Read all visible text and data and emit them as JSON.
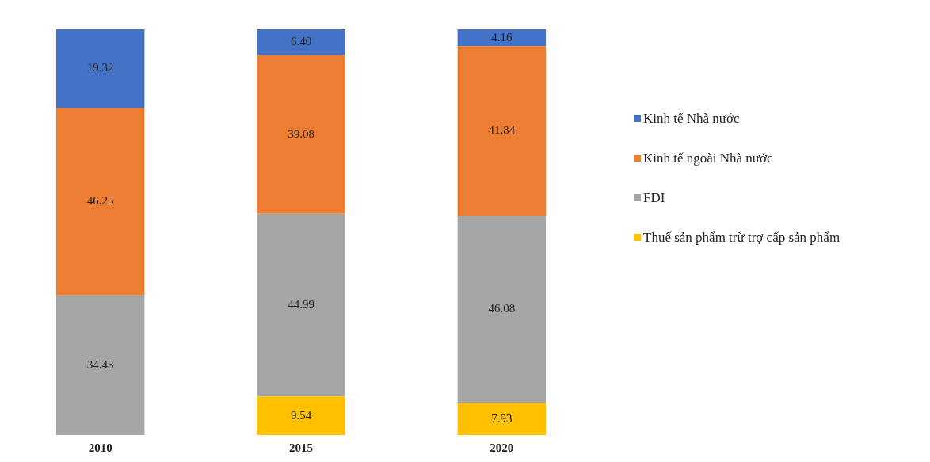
{
  "chart_data": {
    "type": "bar",
    "stacked": true,
    "categories": [
      "2010",
      "2015",
      "2020"
    ],
    "tick_labels": "x",
    "grid": false,
    "legend": "right",
    "series": [
      {
        "name": "Thuế sản phẩm trừ trợ cấp sản phẩm",
        "color": "#ffc000",
        "values": [
          null,
          9.54,
          7.93
        ],
        "value_labels": [
          null,
          "9.54",
          "7.93"
        ]
      },
      {
        "name": "FDI",
        "color": "#a5a5a5",
        "values": [
          34.43,
          44.99,
          46.08
        ],
        "value_labels": [
          "34.43",
          "44.99",
          "46.08"
        ]
      },
      {
        "name": "Kinh tế ngoài Nhà nước",
        "color": "#ed7d31",
        "values": [
          46.25,
          39.08,
          41.84
        ],
        "value_labels": [
          "46.25",
          "39.08",
          "41.84"
        ]
      },
      {
        "name": "Kinh tế Nhà nước",
        "color": "#4472c4",
        "values": [
          19.32,
          6.4,
          4.16
        ],
        "value_labels": [
          "19.32",
          "6.40",
          "4.16"
        ]
      }
    ]
  }
}
